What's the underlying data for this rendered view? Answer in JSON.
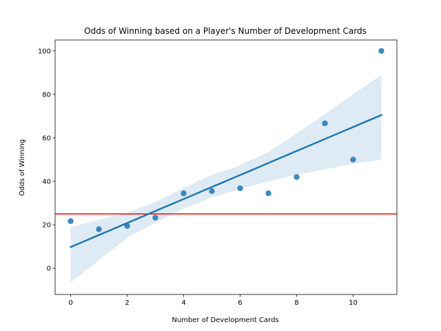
{
  "chart_data": {
    "type": "scatter",
    "title": "Odds of Winning based on a Player's Number of Development Cards",
    "xlabel": "Number of Development Cards",
    "ylabel": "Odds of Winning",
    "xlim": [
      -0.55,
      11.55
    ],
    "ylim": [
      -12,
      105
    ],
    "xticks": [
      "0",
      "2",
      "4",
      "6",
      "8",
      "10"
    ],
    "yticks": [
      "0",
      "20",
      "40",
      "60",
      "80",
      "100"
    ],
    "grid": false,
    "points": [
      {
        "x": 0,
        "y": 21.7
      },
      {
        "x": 1,
        "y": 18.0
      },
      {
        "x": 2,
        "y": 19.5
      },
      {
        "x": 3,
        "y": 23.3
      },
      {
        "x": 4,
        "y": 34.5
      },
      {
        "x": 5,
        "y": 35.5
      },
      {
        "x": 6,
        "y": 36.8
      },
      {
        "x": 7,
        "y": 34.5
      },
      {
        "x": 8,
        "y": 42.0
      },
      {
        "x": 9,
        "y": 66.7
      },
      {
        "x": 10,
        "y": 50.0
      },
      {
        "x": 11,
        "y": 100.0
      }
    ],
    "regression": {
      "x": [
        0,
        11
      ],
      "y": [
        9.8,
        70.5
      ],
      "ci_x": [
        0,
        2,
        3,
        4,
        5,
        5.5,
        6,
        7,
        8,
        9,
        10,
        11
      ],
      "ci_lower": [
        -6.5,
        14.0,
        21.0,
        27.5,
        32.5,
        34.5,
        36.5,
        40.0,
        43.0,
        45.5,
        48.0,
        50.0
      ],
      "ci_upper": [
        19.0,
        25.5,
        30.5,
        37.0,
        43.0,
        45.0,
        47.5,
        53.5,
        62.0,
        71.0,
        80.0,
        89.0
      ]
    },
    "reference_line": {
      "y": 25
    },
    "colors": {
      "points": "#1f77b4",
      "regression": "#1f77b4",
      "ci_band": "#1f77b4",
      "reference_line": "#ff0000"
    }
  }
}
